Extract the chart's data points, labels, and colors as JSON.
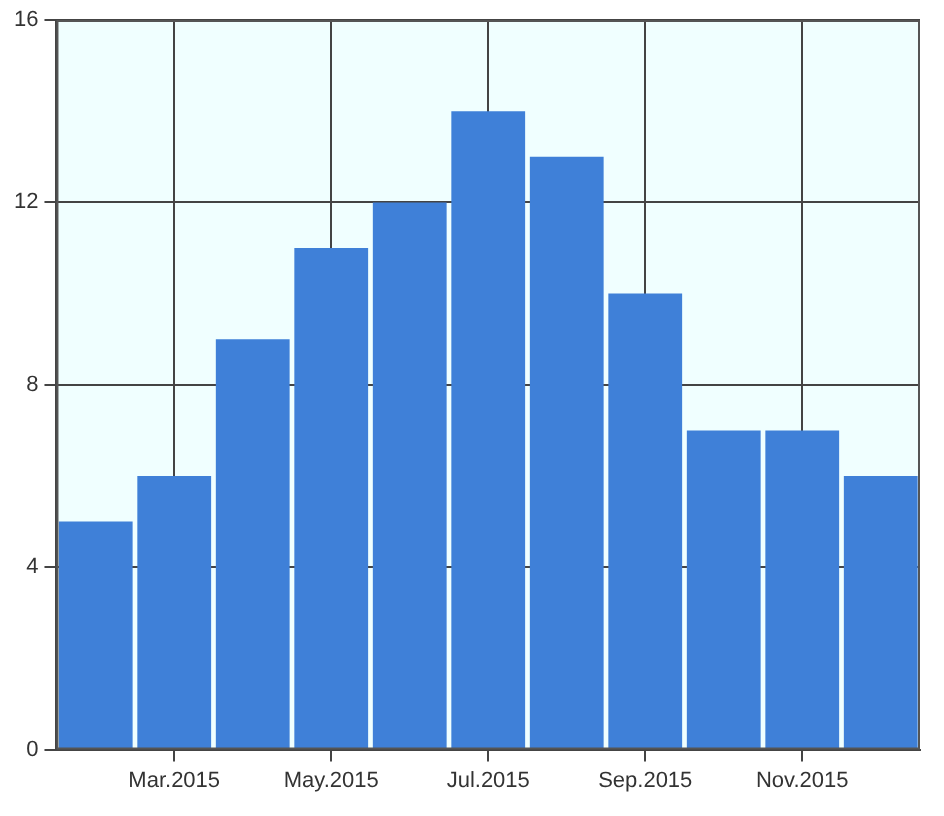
{
  "chart_data": {
    "type": "bar",
    "categories": [
      null,
      "Mar.2015",
      null,
      "May.2015",
      null,
      "Jul.2015",
      null,
      "Sep.2015",
      null,
      "Nov.2015",
      null
    ],
    "values": [
      5,
      6,
      9,
      11,
      12,
      14,
      13,
      10,
      7,
      7,
      6
    ],
    "color": "#3f80d8",
    "ylim": [
      0,
      16
    ],
    "yticks": [
      0,
      4,
      8,
      12,
      16
    ],
    "grid": true
  }
}
